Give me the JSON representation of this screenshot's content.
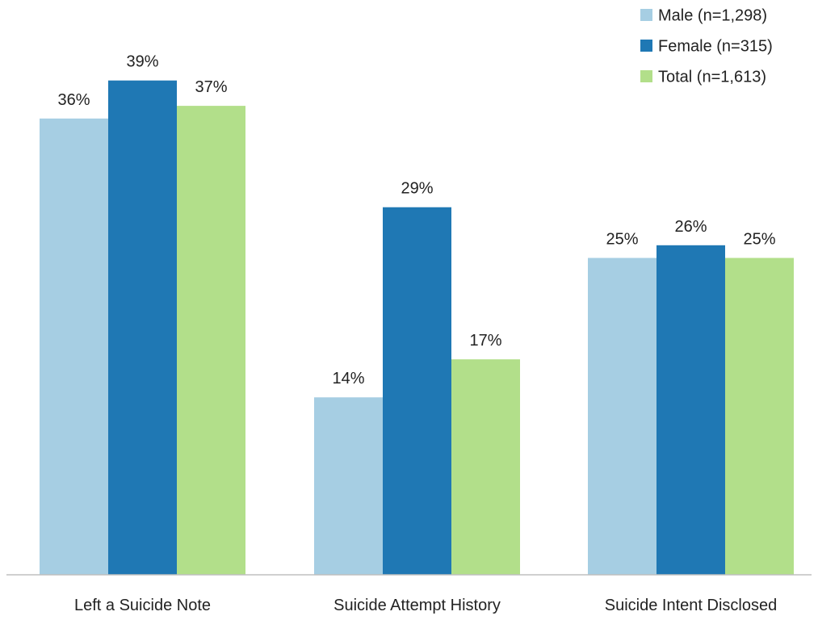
{
  "chart_data": {
    "type": "bar",
    "title": "",
    "xlabel": "",
    "ylabel": "",
    "ylim": [
      0,
      40
    ],
    "grid": false,
    "legend_position": "top-right",
    "categories": [
      "Left a Suicide Note",
      "Suicide Attempt History",
      "Suicide Intent Disclosed"
    ],
    "series": [
      {
        "name": "Male (n=1,298)",
        "color": "#a6cee3",
        "values": [
          36,
          14,
          25
        ],
        "labels": [
          "36%",
          "14%",
          "25%"
        ]
      },
      {
        "name": "Female (n=315)",
        "color": "#1f78b4",
        "values": [
          39,
          29,
          26
        ],
        "labels": [
          "39%",
          "29%",
          "26%"
        ]
      },
      {
        "name": "Total (n=1,613)",
        "color": "#b2df8a",
        "values": [
          37,
          17,
          25
        ],
        "labels": [
          "37%",
          "17%",
          "25%"
        ]
      }
    ]
  }
}
